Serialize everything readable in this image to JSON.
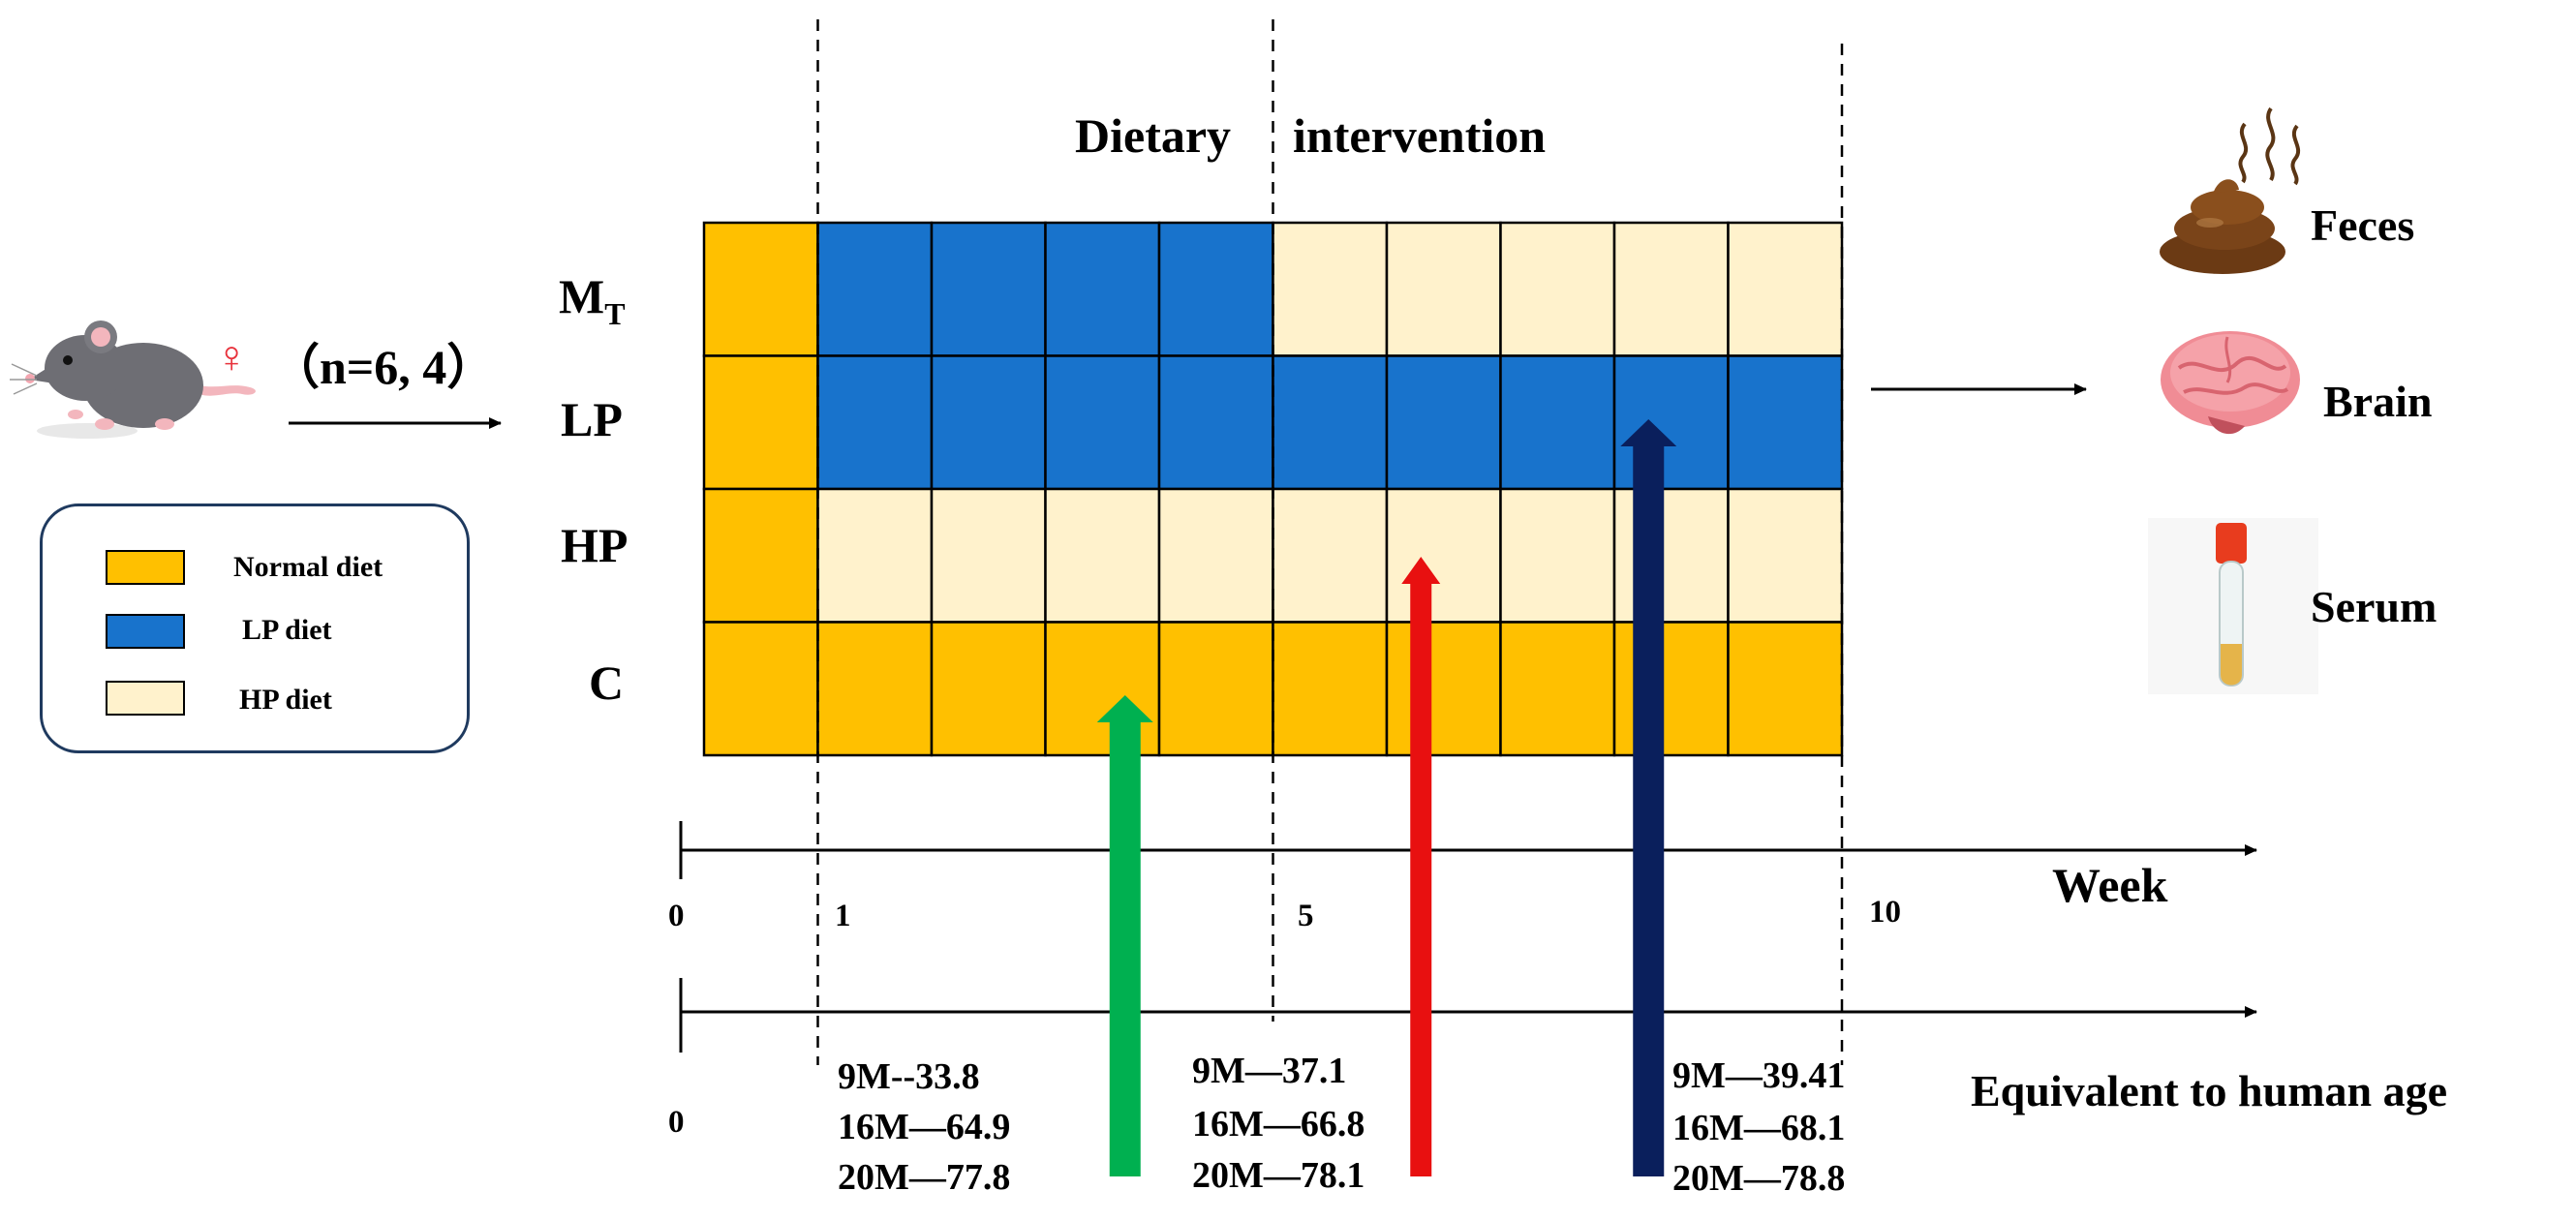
{
  "title": "Dietary  intervention",
  "title_left": "Dietary",
  "title_right": "intervention",
  "cohort_label": "（n=6, 4）",
  "female_symbol": "♀",
  "groups": [
    {
      "main": "M",
      "sub": "T"
    },
    {
      "main": "LP",
      "sub": ""
    },
    {
      "main": "HP",
      "sub": ""
    },
    {
      "main": "C",
      "sub": ""
    }
  ],
  "grid_weeks": 10,
  "grid_rows": [
    [
      "Normal diet",
      "LP diet",
      "LP diet",
      "LP diet",
      "LP diet",
      "HP diet",
      "HP diet",
      "HP diet",
      "HP diet",
      "HP diet"
    ],
    [
      "Normal diet",
      "LP diet",
      "LP diet",
      "LP diet",
      "LP diet",
      "LP diet",
      "LP diet",
      "LP diet",
      "LP diet",
      "LP diet"
    ],
    [
      "Normal diet",
      "HP diet",
      "HP diet",
      "HP diet",
      "HP diet",
      "HP diet",
      "HP diet",
      "HP diet",
      "HP diet",
      "HP diet"
    ],
    [
      "Normal diet",
      "Normal diet",
      "Normal diet",
      "Normal diet",
      "Normal diet",
      "Normal diet",
      "Normal diet",
      "Normal diet",
      "Normal diet",
      "Normal diet"
    ]
  ],
  "legend": [
    {
      "label": "Normal diet",
      "color": "#FFC000"
    },
    {
      "label": "LP diet",
      "color": "#1873CC"
    },
    {
      "label": "HP diet",
      "color": "#FFF2CC"
    }
  ],
  "week_axis": {
    "label": "Week",
    "ticks": [
      "0",
      "1",
      "5",
      "10"
    ]
  },
  "age_axis": {
    "label": "Equivalent to human age",
    "ticks": [
      "0"
    ]
  },
  "timepoints": [
    {
      "week": 3.7,
      "color": "#00B050",
      "age_lines": [
        "9M--33.8",
        "16M—64.9",
        "20M—77.8"
      ]
    },
    {
      "week": 6.3,
      "color": "#E81010",
      "age_lines": [
        "9M—37.1",
        "16M—66.8",
        "20M—78.1"
      ]
    },
    {
      "week": 8.3,
      "color": "#0A1F5C",
      "age_lines": [
        "9M—39.41",
        "16M—68.1",
        "20M—78.8"
      ]
    }
  ],
  "outputs": [
    {
      "label": "Feces",
      "icon": "feces-icon"
    },
    {
      "label": "Brain",
      "icon": "brain-icon"
    },
    {
      "label": "Serum",
      "icon": "serum-tube-icon"
    }
  ]
}
